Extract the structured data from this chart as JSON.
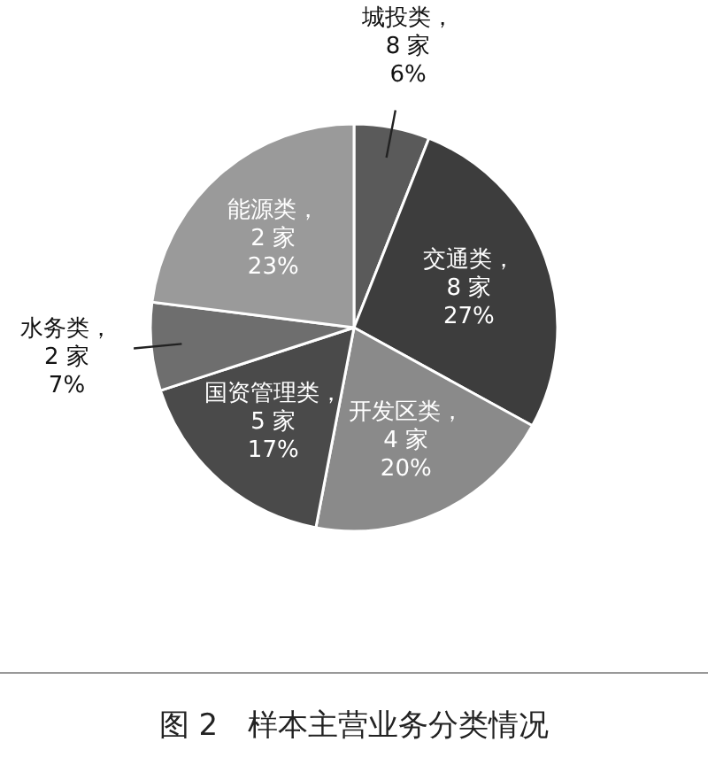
{
  "chart_data": {
    "type": "pie",
    "title": "图 2　样本主营业务分类情况",
    "categories": [
      "城投类，8 家",
      "交通类，8 家",
      "开发区类，4 家",
      "国资管理类，5 家",
      "水务类，2 家",
      "能源类，2 家"
    ],
    "values": [
      6,
      27,
      20,
      17,
      7,
      23
    ],
    "value_labels": [
      "6%",
      "27%",
      "20%",
      "17%",
      "7%",
      "23%"
    ],
    "colors": [
      "#5a5a5a",
      "#3d3d3d",
      "#8a8a8a",
      "#4a4a4a",
      "#6e6e6e",
      "#9a9a9a"
    ]
  }
}
